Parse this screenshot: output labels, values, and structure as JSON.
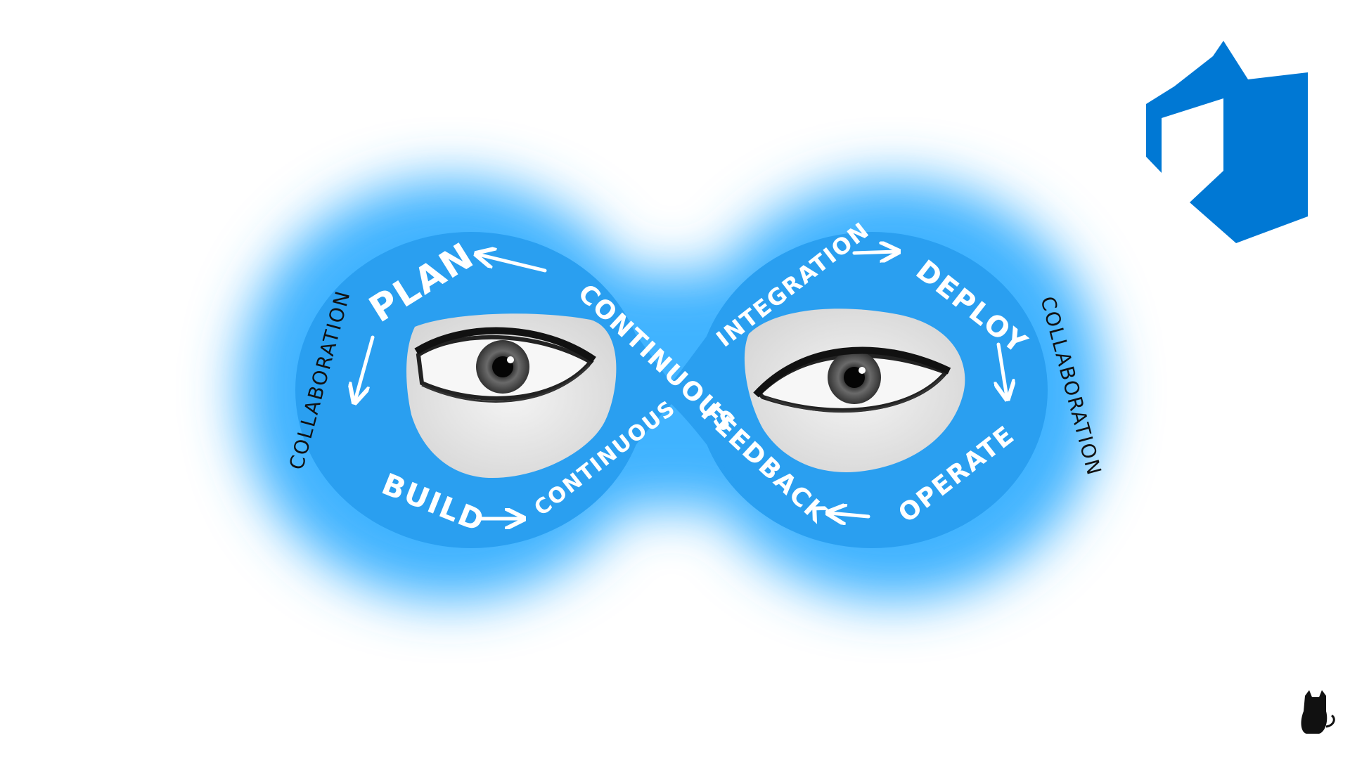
{
  "diagram": {
    "labels": {
      "plan": "PLAN",
      "build": "BUILD",
      "continuous_build": "CONTINUOUS",
      "continuous_cross": "CONTINUOUS",
      "feedback": "FEEDBACK",
      "integration": "INTEGRATION",
      "deploy": "DEPLOY",
      "operate": "OPERATE",
      "collaboration_left": "COLLABORATION",
      "collaboration_right": "COLLABORATION"
    },
    "colors": {
      "loop": "#2a9ff0",
      "glow": "#3fb3ff",
      "logo": "#0078d4"
    },
    "icons": [
      "arrow-icon",
      "eye-icon",
      "azure-devops-logo-icon",
      "cat-icon"
    ]
  }
}
